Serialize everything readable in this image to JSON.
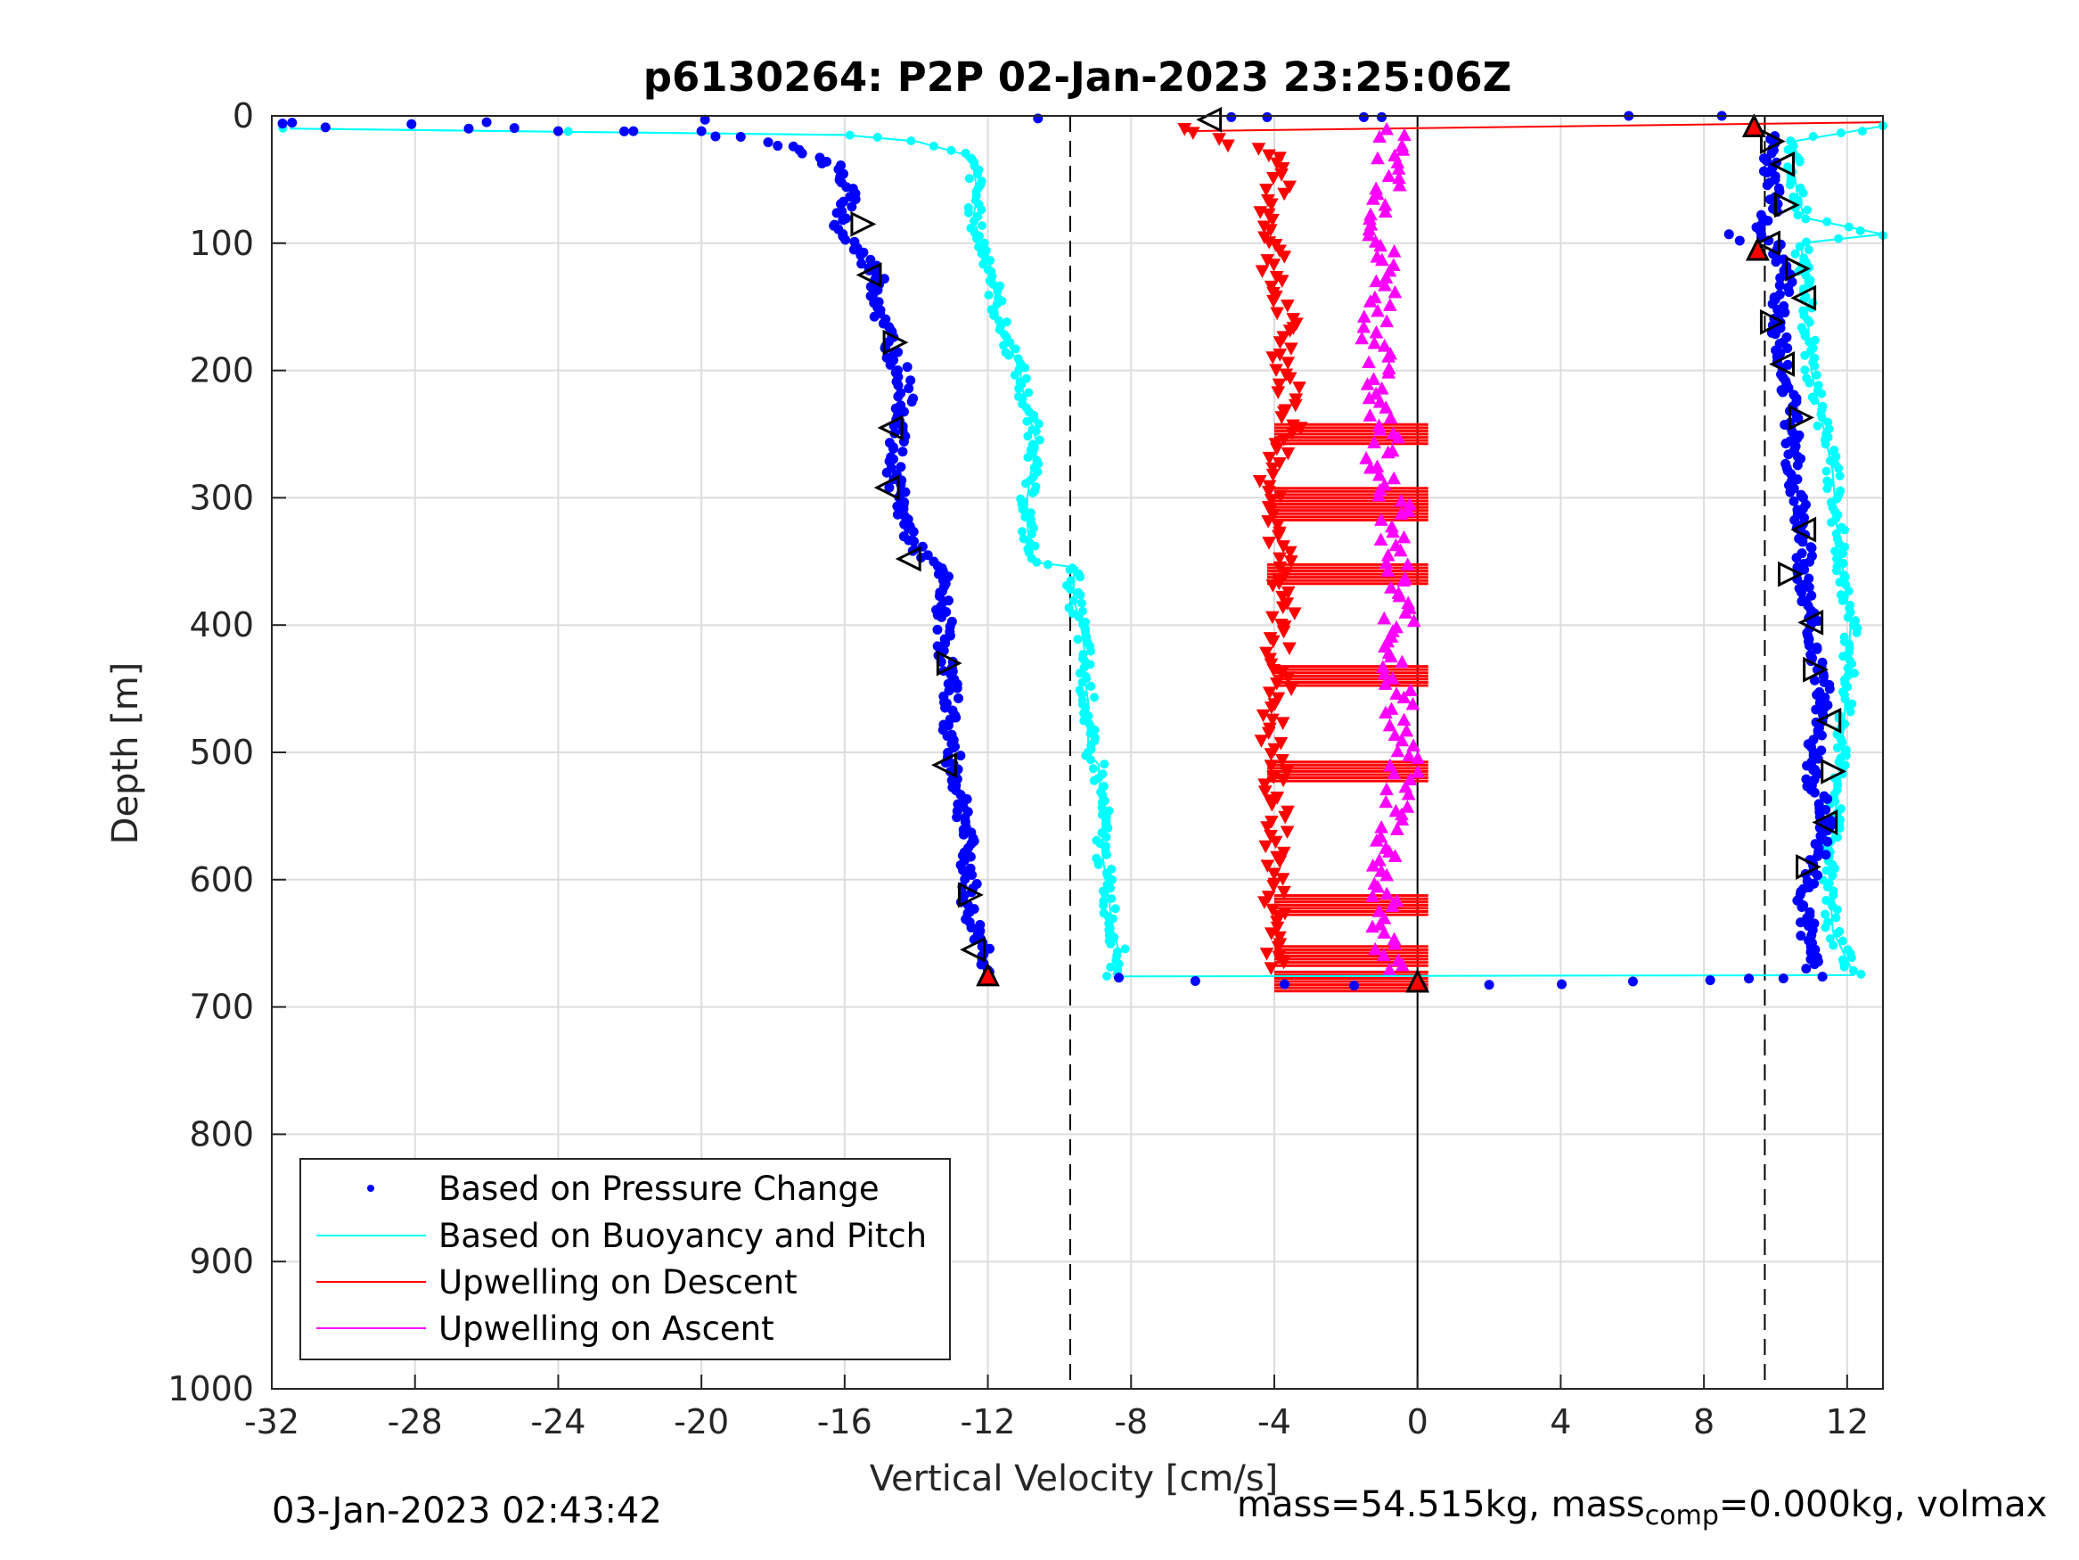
{
  "chart_data": {
    "type": "scatter",
    "title": "p6130264: P2P 02-Jan-2023 23:25:06Z",
    "xlabel": "Vertical Velocity [cm/s]",
    "ylabel": "Depth [m]",
    "xlim": [
      -32,
      13
    ],
    "ylim": [
      0,
      1000
    ],
    "y_reversed": true,
    "xticks": [
      "-32",
      "-28",
      "-24",
      "-20",
      "-16",
      "-12",
      "-8",
      "-4",
      "0",
      "4",
      "8",
      "12"
    ],
    "xtick_values": [
      -32,
      -28,
      -24,
      -20,
      -16,
      -12,
      -8,
      -4,
      0,
      4,
      8,
      12
    ],
    "yticks": [
      "0",
      "100",
      "200",
      "300",
      "400",
      "500",
      "600",
      "700",
      "800",
      "900",
      "1000"
    ],
    "ytick_values": [
      0,
      100,
      200,
      300,
      400,
      500,
      600,
      700,
      800,
      900,
      1000
    ],
    "grid": true,
    "legend_position": "bottom-left",
    "reference_lines": [
      {
        "x": -9.7,
        "style": "dashed"
      },
      {
        "x": 9.7,
        "style": "dashed"
      },
      {
        "x": 0,
        "style": "solid",
        "y_from": 0,
        "y_to": 1000
      }
    ],
    "series": [
      {
        "name": "Based on Pressure Change",
        "color": "#0000ff",
        "marker": "dot",
        "descent": {
          "depth": [
            5,
            10,
            15,
            20,
            30,
            40,
            50,
            60,
            70,
            80,
            90,
            100,
            110,
            120,
            130,
            140,
            150,
            160,
            170,
            180,
            190,
            200,
            220,
            240,
            260,
            280,
            300,
            320,
            340,
            350,
            360,
            380,
            400,
            420,
            440,
            460,
            480,
            500,
            520,
            540,
            560,
            580,
            600,
            620,
            640,
            660,
            675
          ],
          "velocity": [
            -31.5,
            -25.0,
            -19.5,
            -18.0,
            -17.0,
            -16.3,
            -16.0,
            -15.9,
            -15.9,
            -16.1,
            -16.2,
            -15.8,
            -15.5,
            -15.2,
            -15.0,
            -15.1,
            -15.0,
            -15.0,
            -14.8,
            -14.7,
            -14.6,
            -14.4,
            -14.3,
            -14.4,
            -14.6,
            -14.6,
            -14.5,
            -14.3,
            -14.0,
            -13.6,
            -13.3,
            -13.3,
            -13.2,
            -13.2,
            -13.1,
            -13.0,
            -13.1,
            -13.0,
            -12.9,
            -12.7,
            -12.6,
            -12.6,
            -12.5,
            -12.6,
            -12.3,
            -12.0,
            -12.0
          ]
        },
        "ascent": {
          "depth": [
            670,
            640,
            610,
            580,
            550,
            520,
            490,
            460,
            430,
            400,
            370,
            340,
            310,
            280,
            250,
            220,
            190,
            160,
            130,
            100,
            90,
            70,
            50,
            30,
            15
          ],
          "velocity": [
            11.0,
            10.9,
            10.8,
            11.2,
            11.4,
            11.0,
            11.1,
            11.4,
            11.2,
            11.0,
            10.8,
            10.8,
            10.7,
            10.5,
            10.5,
            10.4,
            10.2,
            10.0,
            10.3,
            10.0,
            9.5,
            10.0,
            9.9,
            9.8,
            9.8
          ]
        },
        "turnaround": {
          "depth": [
            678,
            680,
            681,
            682,
            683,
            682,
            681,
            680,
            679,
            678,
            677,
            676
          ],
          "velocity": [
            -8.5,
            -6.0,
            -4.0,
            -2.0,
            0.0,
            2.0,
            4.0,
            6.0,
            8.0,
            9.5,
            10.5,
            11.5
          ]
        }
      },
      {
        "name": "Based on Buoyancy and Pitch",
        "color": "#00ffff",
        "marker": "line+dot",
        "descent": {
          "depth": [
            10,
            15,
            20,
            30,
            40,
            60,
            80,
            100,
            120,
            140,
            160,
            180,
            200,
            220,
            240,
            260,
            280,
            300,
            320,
            350,
            355,
            360,
            380,
            400,
            420,
            440,
            460,
            480,
            500,
            510,
            520,
            540,
            560,
            580,
            600,
            620,
            640,
            660,
            675
          ],
          "velocity": [
            -31.5,
            -16.0,
            -14.0,
            -12.7,
            -12.4,
            -12.3,
            -12.4,
            -12.2,
            -11.9,
            -11.8,
            -11.7,
            -11.4,
            -11.1,
            -11.0,
            -10.8,
            -10.6,
            -10.8,
            -10.9,
            -10.9,
            -10.8,
            -9.5,
            -9.6,
            -9.6,
            -9.4,
            -9.3,
            -9.3,
            -9.2,
            -9.2,
            -9.2,
            -8.9,
            -8.9,
            -8.8,
            -8.8,
            -8.8,
            -8.7,
            -8.6,
            -8.5,
            -8.3,
            -8.5
          ]
        },
        "ascent": {
          "depth": [
            675,
            640,
            600,
            560,
            520,
            480,
            440,
            400,
            360,
            320,
            280,
            240,
            200,
            160,
            120,
            100,
            93,
            80,
            60,
            40,
            20,
            8
          ],
          "velocity": [
            12.2,
            11.6,
            11.5,
            11.6,
            11.8,
            11.9,
            12.0,
            12.1,
            11.9,
            11.7,
            11.6,
            11.3,
            11.0,
            10.9,
            10.8,
            10.7,
            13.0,
            10.8,
            10.6,
            10.5,
            10.5,
            13.0
          ]
        }
      },
      {
        "name": "Upwelling on Descent",
        "color": "#ff0000",
        "marker": "triangle-down",
        "depth": [
          10,
          30,
          50,
          70,
          90,
          110,
          130,
          150,
          170,
          190,
          210,
          230,
          250,
          270,
          290,
          310,
          330,
          350,
          370,
          390,
          410,
          430,
          450,
          470,
          490,
          510,
          530,
          550,
          570,
          590,
          610,
          630,
          650,
          670
        ],
        "velocity": [
          -6.5,
          -4.0,
          -3.8,
          -4.2,
          -4.0,
          -3.9,
          -4.1,
          -3.8,
          -3.6,
          -3.7,
          -3.6,
          -3.5,
          -3.5,
          -3.9,
          -4.1,
          -3.8,
          -3.9,
          -3.8,
          -4.0,
          -3.7,
          -3.9,
          -3.9,
          -3.8,
          -4.0,
          -4.1,
          -3.9,
          -4.0,
          -3.9,
          -4.0,
          -3.9,
          -4.0,
          -3.9,
          -3.9,
          -3.8
        ],
        "bands_depth": [
          250,
          300,
          310,
          360,
          440,
          515,
          620,
          660,
          680
        ],
        "bands_from": [
          -4.0,
          -4.0,
          -4.0,
          -4.2,
          -4.0,
          -4.2,
          -4.0,
          -4.0,
          -4.0
        ],
        "bands_to": [
          0.3,
          0.3,
          0.3,
          0.3,
          0.3,
          0.3,
          0.3,
          0.3,
          0.3
        ]
      },
      {
        "name": "Upwelling on Ascent",
        "color": "#ff00ff",
        "marker": "triangle-up",
        "depth": [
          10,
          30,
          50,
          70,
          90,
          110,
          130,
          150,
          170,
          190,
          210,
          230,
          250,
          270,
          290,
          310,
          330,
          350,
          370,
          390,
          410,
          430,
          450,
          470,
          490,
          510,
          530,
          550,
          570,
          590,
          610,
          630,
          650,
          670
        ],
        "velocity": [
          -0.8,
          -0.7,
          -0.6,
          -0.9,
          -1.0,
          -1.0,
          -0.8,
          -1.0,
          -1.1,
          -1.2,
          -1.1,
          -0.9,
          -0.8,
          -1.0,
          -0.7,
          -0.6,
          -0.8,
          -0.7,
          -0.6,
          -0.5,
          -0.6,
          -0.6,
          -0.5,
          -0.5,
          -0.5,
          -0.4,
          -0.5,
          -0.6,
          -0.8,
          -0.9,
          -1.0,
          -1.0,
          -0.9,
          -0.5
        ]
      }
    ],
    "open_triangles": [
      {
        "depth": 3,
        "velocity": -5.8,
        "dir": "left"
      },
      {
        "depth": 85,
        "velocity": -15.5,
        "dir": "right"
      },
      {
        "depth": 125,
        "velocity": -15.3,
        "dir": "left"
      },
      {
        "depth": 178,
        "velocity": -14.6,
        "dir": "right"
      },
      {
        "depth": 245,
        "velocity": -14.7,
        "dir": "left"
      },
      {
        "depth": 292,
        "velocity": -14.8,
        "dir": "left"
      },
      {
        "depth": 348,
        "velocity": -14.2,
        "dir": "left"
      },
      {
        "depth": 430,
        "velocity": -13.1,
        "dir": "right"
      },
      {
        "depth": 510,
        "velocity": -13.2,
        "dir": "left"
      },
      {
        "depth": 612,
        "velocity": -12.5,
        "dir": "right"
      },
      {
        "depth": 655,
        "velocity": -12.4,
        "dir": "left"
      },
      {
        "depth": 20,
        "velocity": 9.9,
        "dir": "right"
      },
      {
        "depth": 38,
        "velocity": 10.2,
        "dir": "left"
      },
      {
        "depth": 70,
        "velocity": 10.3,
        "dir": "right"
      },
      {
        "depth": 100,
        "velocity": 9.8,
        "dir": "left"
      },
      {
        "depth": 120,
        "velocity": 10.6,
        "dir": "right"
      },
      {
        "depth": 143,
        "velocity": 10.8,
        "dir": "left"
      },
      {
        "depth": 162,
        "velocity": 9.9,
        "dir": "right"
      },
      {
        "depth": 195,
        "velocity": 10.2,
        "dir": "left"
      },
      {
        "depth": 237,
        "velocity": 10.7,
        "dir": "right"
      },
      {
        "depth": 325,
        "velocity": 10.8,
        "dir": "left"
      },
      {
        "depth": 360,
        "velocity": 10.4,
        "dir": "right"
      },
      {
        "depth": 398,
        "velocity": 11.0,
        "dir": "left"
      },
      {
        "depth": 435,
        "velocity": 11.1,
        "dir": "right"
      },
      {
        "depth": 475,
        "velocity": 11.5,
        "dir": "left"
      },
      {
        "depth": 515,
        "velocity": 11.6,
        "dir": "right"
      },
      {
        "depth": 555,
        "velocity": 11.4,
        "dir": "left"
      },
      {
        "depth": 590,
        "velocity": 10.9,
        "dir": "right"
      }
    ],
    "red_markers": [
      {
        "depth": 675,
        "velocity": -12.0
      },
      {
        "depth": 680,
        "velocity": 0.0
      },
      {
        "depth": 8,
        "velocity": 9.4
      },
      {
        "depth": 105,
        "velocity": 9.5
      }
    ],
    "legend": [
      "Based on Pressure Change",
      "Based on Buoyancy and Pitch",
      "Upwelling on Descent",
      "Upwelling on Ascent"
    ]
  },
  "footer": {
    "timestamp": "03-Jan-2023 02:43:42",
    "mass_prefix": "mass=54.515kg, mass",
    "mass_sub": "comp",
    "mass_suffix": "=0.000kg, volmax"
  }
}
